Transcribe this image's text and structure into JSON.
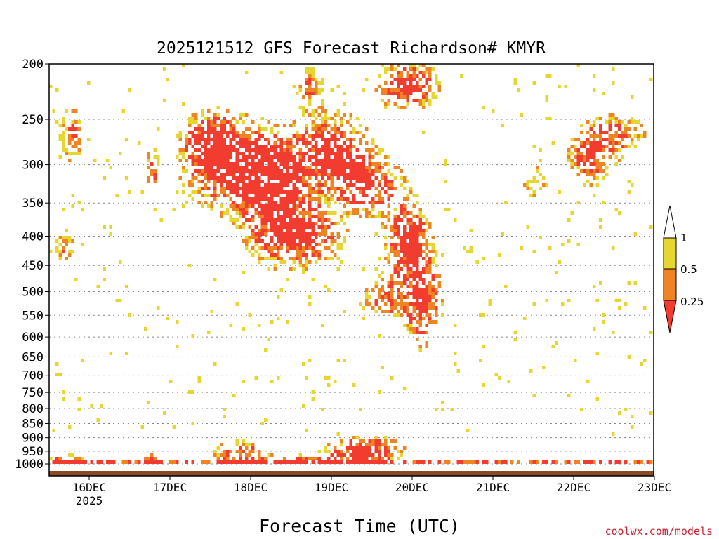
{
  "chart_data": {
    "type": "heatmap",
    "title": "2025121512 GFS Forecast Richardson# KMYR",
    "xlabel": "Forecast Time (UTC)",
    "ylabel": "",
    "credit": "coolwx.com/models",
    "y_axis": {
      "scale": "pressure (inverted, non-linear)",
      "ticks": [
        "200",
        "250",
        "300",
        "350",
        "400",
        "450",
        "500",
        "550",
        "600",
        "650",
        "700",
        "750",
        "800",
        "850",
        "900",
        "950",
        "1000"
      ]
    },
    "x_axis": {
      "range": [
        "2025-12-15T12:00Z",
        "2025-12-23T00:00Z"
      ],
      "ticks": [
        "16DEC",
        "17DEC",
        "18DEC",
        "19DEC",
        "20DEC",
        "21DEC",
        "22DEC",
        "23DEC"
      ],
      "first_tick_year": "2025"
    },
    "gridlines": "horizontal dotted at each pressure tick",
    "legend": {
      "placement": "right",
      "bins": [
        {
          "label": "1",
          "color": "#ffffff",
          "range": ">1"
        },
        {
          "label": "0.5",
          "color": "#e6d630",
          "range": "0.5-1"
        },
        {
          "label": "0.25",
          "color": "#ee8422",
          "range": "0.25-0.5"
        },
        {
          "label": "",
          "color": "#f23c30",
          "range": "<0.25"
        }
      ]
    },
    "colors": {
      "lt_025": "#f23c30",
      "b025_05": "#ee8422",
      "b05_1": "#e6d630",
      "ground": "#8b4a26"
    }
  }
}
